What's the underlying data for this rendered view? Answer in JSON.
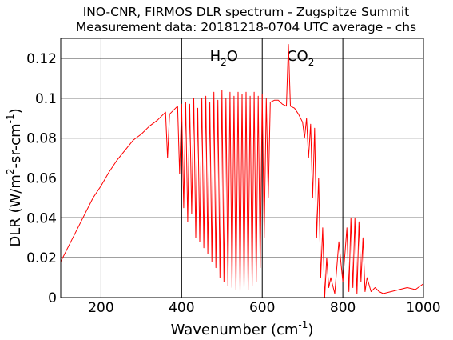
{
  "chart_data": {
    "type": "line",
    "title": "INO-CNR, FIRMOS DLR spectrum - Zugspitze Summit",
    "subtitle": "Measurement data: 20181218-0704 UTC average - chs",
    "xlabel": {
      "main": "Wavenumber (cm",
      "sup": "-1",
      "tail": ")"
    },
    "ylabel": {
      "a": "DLR (W/m",
      "sup1": "2",
      "b": "-sr-cm",
      "sup2": "-1",
      "c": ")"
    },
    "xlim": [
      100,
      1000
    ],
    "ylim": [
      0,
      0.13
    ],
    "xticks": [
      200,
      400,
      600,
      800,
      1000
    ],
    "xtick_labels": [
      "200",
      "400",
      "600",
      "800",
      "1000"
    ],
    "yticks": [
      0,
      0.02,
      0.04,
      0.06,
      0.08,
      0.1,
      0.12
    ],
    "ytick_labels": [
      "0",
      "0.02",
      "0.04",
      "0.06",
      "0.08",
      "0.1",
      "0.12"
    ],
    "grid": true,
    "line_color": "#ff0000",
    "annotations": [
      {
        "base": "H",
        "sub": "2",
        "tail": "O",
        "x": 505
      },
      {
        "base": "CO",
        "sub": "2",
        "tail": "",
        "x": 695
      }
    ],
    "series": [
      {
        "x": [
          100,
          120,
          140,
          160,
          180,
          200,
          220,
          240,
          260,
          280,
          300,
          320,
          340,
          350,
          360,
          365,
          370,
          380,
          390,
          395,
          400,
          405,
          410,
          415,
          420,
          425,
          430,
          435,
          440,
          445,
          450,
          455,
          460,
          465,
          470,
          475,
          480,
          485,
          490,
          495,
          500,
          505,
          510,
          515,
          520,
          525,
          530,
          535,
          540,
          545,
          550,
          555,
          560,
          565,
          570,
          575,
          580,
          585,
          590,
          595,
          600,
          605,
          610,
          615,
          620,
          630,
          640,
          650,
          660,
          665,
          670,
          680,
          690,
          700,
          705,
          710,
          715,
          720,
          725,
          730,
          735,
          740,
          745,
          750,
          755,
          760,
          765,
          770,
          780,
          790,
          800,
          810,
          815,
          820,
          825,
          830,
          835,
          840,
          845,
          850,
          855,
          860,
          870,
          880,
          890,
          900,
          920,
          940,
          960,
          980,
          1000
        ],
        "y": [
          0.018,
          0.026,
          0.034,
          0.042,
          0.05,
          0.056,
          0.063,
          0.069,
          0.074,
          0.079,
          0.082,
          0.086,
          0.089,
          0.091,
          0.093,
          0.07,
          0.092,
          0.094,
          0.096,
          0.062,
          0.097,
          0.045,
          0.098,
          0.038,
          0.097,
          0.042,
          0.1,
          0.03,
          0.095,
          0.028,
          0.1,
          0.025,
          0.101,
          0.022,
          0.098,
          0.018,
          0.103,
          0.015,
          0.099,
          0.01,
          0.104,
          0.008,
          0.1,
          0.006,
          0.103,
          0.005,
          0.101,
          0.004,
          0.103,
          0.003,
          0.102,
          0.005,
          0.103,
          0.004,
          0.101,
          0.006,
          0.103,
          0.008,
          0.101,
          0.015,
          0.102,
          0.03,
          0.1,
          0.05,
          0.098,
          0.099,
          0.099,
          0.097,
          0.096,
          0.127,
          0.096,
          0.095,
          0.092,
          0.088,
          0.08,
          0.09,
          0.07,
          0.087,
          0.05,
          0.085,
          0.03,
          0.06,
          0.01,
          0.035,
          0.0,
          0.02,
          0.005,
          0.01,
          0.002,
          0.028,
          0.008,
          0.035,
          0.003,
          0.04,
          0.005,
          0.04,
          0.002,
          0.038,
          0.008,
          0.03,
          0.003,
          0.01,
          0.003,
          0.005,
          0.003,
          0.002,
          0.003,
          0.004,
          0.005,
          0.004,
          0.007
        ]
      }
    ]
  }
}
